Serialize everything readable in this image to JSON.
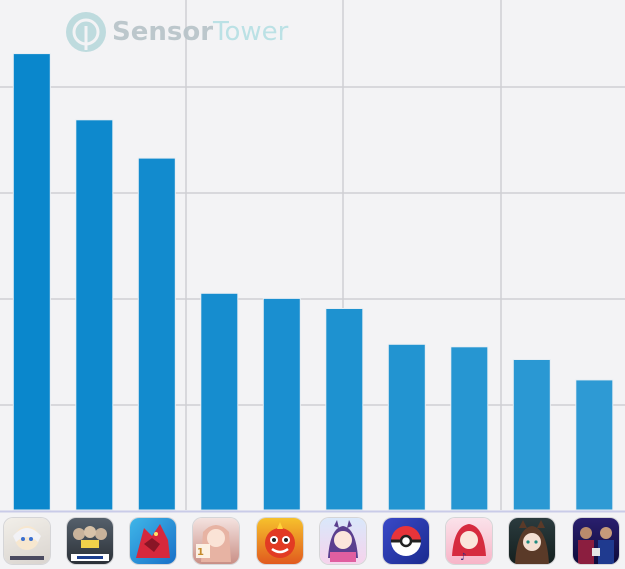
{
  "watermark": {
    "brand_part1": "Sensor",
    "brand_part2": "Tower"
  },
  "chart_data": {
    "type": "bar",
    "title": "",
    "xlabel": "",
    "ylabel": "",
    "ylim": [
      0,
      10
    ],
    "grid": true,
    "categories": [
      "Genshin Impact",
      "eFootball Winning Eleven",
      "Puzzle & Dragons",
      "Shiny Colors",
      "Monster Strike",
      "Uma Musume Pretty Derby",
      "Pokemon GO",
      "Project Sekai",
      "Arknights",
      "Pro Baseball Spirits A"
    ],
    "series": [
      {
        "values": [
          8.95,
          7.65,
          6.9,
          4.25,
          4.15,
          3.95,
          3.25,
          3.2,
          2.95,
          2.55
        ]
      }
    ],
    "bar_color_top": "#0a87cc",
    "bar_color_bottom": "#2e9ad4",
    "icons": [
      "genshin-icon",
      "baseball-icon",
      "dragon-icon",
      "idol-icon",
      "monster-icon",
      "horse-girl-icon",
      "pokeball-icon",
      "music-icon",
      "arknights-icon",
      "soccer-icon"
    ]
  }
}
